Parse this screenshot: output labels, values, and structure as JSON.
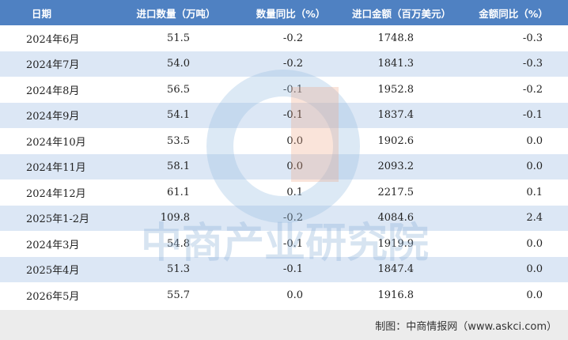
{
  "table": {
    "header": [
      "日期",
      "进口数量（万吨）",
      "数量同比（%）",
      "进口金额（百万美元）",
      "金额同比（%）"
    ],
    "rows": [
      [
        "2024年6月",
        "51.5",
        "-0.2",
        "1748.8",
        "-0.3"
      ],
      [
        "2024年7月",
        "54.0",
        "-0.2",
        "1841.3",
        "-0.3"
      ],
      [
        "2024年8月",
        "56.5",
        "-0.1",
        "1952.8",
        "-0.2"
      ],
      [
        "2024年9月",
        "54.1",
        "-0.1",
        "1837.4",
        "-0.1"
      ],
      [
        "2024年10月",
        "53.5",
        "0.0",
        "1902.6",
        "0.0"
      ],
      [
        "2024年11月",
        "58.1",
        "0.0",
        "2093.2",
        "0.0"
      ],
      [
        "2024年12月",
        "61.1",
        "0.1",
        "2217.5",
        "0.1"
      ],
      [
        "2025年1-2月",
        "109.8",
        "-0.2",
        "4084.6",
        "2.4"
      ],
      [
        "2024年3月",
        "54.8",
        "-0.1",
        "1919.9",
        "0.0"
      ],
      [
        "2025年4月",
        "51.3",
        "-0.1",
        "1847.4",
        "0.0"
      ],
      [
        "2026年5月",
        "55.7",
        "0.0",
        "1916.8",
        "0.0"
      ]
    ]
  },
  "watermark": "中商产业研究院",
  "footer": "制图：中商情报网（www.askci.com）"
}
